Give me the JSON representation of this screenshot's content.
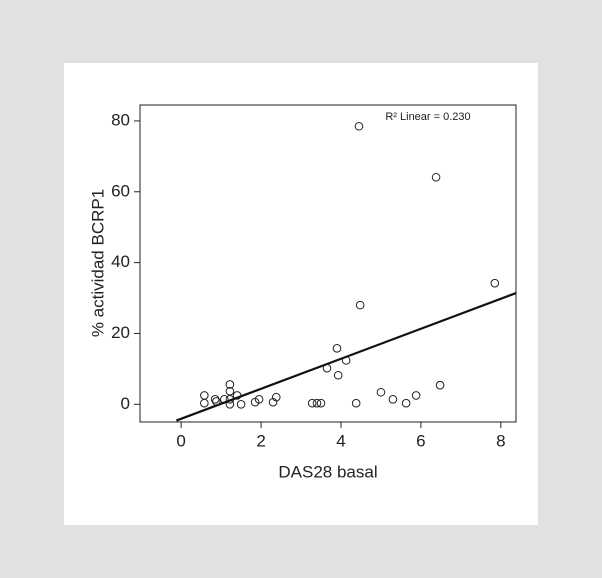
{
  "chart_data": {
    "type": "scatter",
    "annotation": "R² Linear = 0.230",
    "x_label": "DAS28 basal",
    "y_label": "% actividad BCRP1",
    "xlim": [
      -1.03,
      8.38
    ],
    "ylim": [
      -5,
      84.5
    ],
    "xticks": [
      0,
      2,
      4,
      6,
      8
    ],
    "yticks": [
      0,
      20,
      40,
      60,
      80
    ],
    "marker_color": "#222222",
    "x": [
      0.58,
      0.58,
      0.85,
      0.88,
      1.08,
      1.22,
      1.22,
      1.22,
      1.22,
      1.4,
      1.5,
      1.85,
      1.95,
      2.3,
      2.38,
      3.28,
      3.4,
      3.5,
      3.65,
      3.93,
      3.9,
      4.13,
      4.38,
      4.48,
      4.45,
      5.0,
      5.3,
      5.63,
      5.88,
      6.38,
      6.48,
      7.85
    ],
    "values": [
      2.5,
      0.3,
      1.4,
      0.8,
      1.4,
      5.6,
      3.7,
      1.4,
      0,
      2.5,
      0,
      0.6,
      1.4,
      0.6,
      2.0,
      0.3,
      0.3,
      0.3,
      10.2,
      8.2,
      15.8,
      12.4,
      0.3,
      28.0,
      78.5,
      3.4,
      1.4,
      0.3,
      2.5,
      64.1,
      5.4,
      34.2
    ],
    "fit_line": {
      "color": "#111111",
      "x": [
        -0.12,
        8.38
      ],
      "values": [
        -4.6,
        31.4
      ]
    }
  }
}
